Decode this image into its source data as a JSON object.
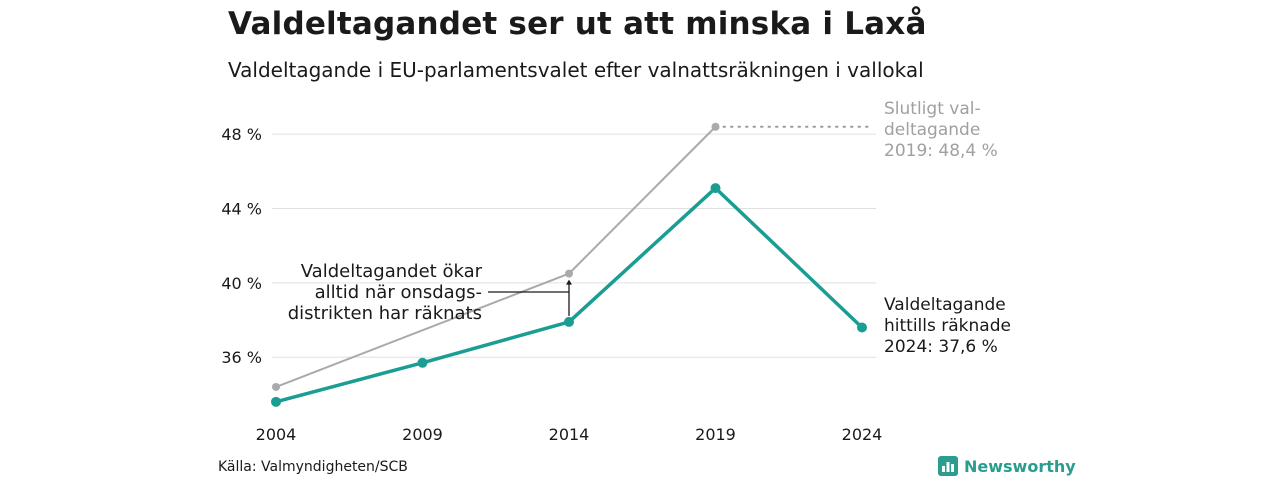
{
  "header": {
    "title": "Valdeltagandet ser ut att minska i Laxå",
    "subtitle": "Valdeltagande i EU-parlamentsvalet efter valnattsräkningen i vallokal"
  },
  "footer": {
    "source": "Källa: Valmyndigheten/SCB",
    "brand": "Newsworthy",
    "brand_icon": "bar-chart-logo-icon"
  },
  "colors": {
    "teal": "#1a9e93",
    "gray": "#aaaaaa",
    "grid": "#e0e0e0",
    "text": "#1a1a1a",
    "brand": "#2a9d8f"
  },
  "chart_data": {
    "type": "line",
    "x": [
      2004,
      2009,
      2014,
      2019,
      2024
    ],
    "x_tick_labels": [
      "2004",
      "2009",
      "2014",
      "2019",
      "2024"
    ],
    "y_ticks": [
      36,
      40,
      44,
      48
    ],
    "y_tick_labels": [
      "36 %",
      "40 %",
      "44 %",
      "48 %"
    ],
    "ylim": [
      33.0,
      50.0
    ],
    "grid": true,
    "series": [
      {
        "key": "final",
        "color": "#aaaaaa",
        "x": [
          2004,
          2014,
          2019
        ],
        "values": [
          34.4,
          40.5,
          48.4
        ]
      },
      {
        "key": "counted",
        "color": "#1a9e93",
        "x": [
          2004,
          2009,
          2014,
          2019,
          2024
        ],
        "values": [
          33.6,
          35.7,
          37.9,
          45.1,
          37.6
        ]
      }
    ],
    "annotations": {
      "final": [
        "Slutligt val-",
        "deltagande",
        "2019: 48,4 %"
      ],
      "counted": [
        "Valdeltagande",
        "hittills räknade",
        "2024: 37,6 %"
      ],
      "note": [
        "Valdeltagandet ökar",
        "alltid när onsdags-",
        "distrikten har räknats"
      ]
    }
  }
}
